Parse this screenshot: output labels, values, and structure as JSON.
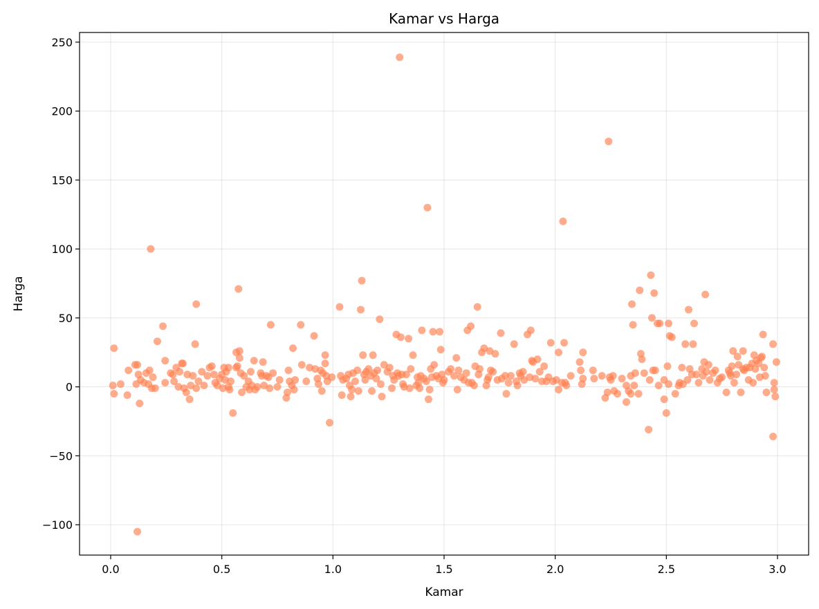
{
  "chart_data": {
    "type": "scatter",
    "title": "Kamar vs Harga",
    "xlabel": "Kamar",
    "ylabel": "Harga",
    "xlim": [
      -0.14,
      3.14
    ],
    "ylim": [
      -122,
      257
    ],
    "xticks": [
      0.0,
      0.5,
      1.0,
      1.5,
      2.0,
      2.5,
      3.0
    ],
    "xtick_labels": [
      "0.0",
      "0.5",
      "1.0",
      "1.5",
      "2.0",
      "2.5",
      "3.0"
    ],
    "yticks": [
      -100,
      -50,
      0,
      50,
      100,
      150,
      200,
      250
    ],
    "ytick_labels": [
      "−100",
      "−50",
      "0",
      "50",
      "100",
      "150",
      "200",
      "250"
    ],
    "grid": true,
    "marker_color": "#FF7F50",
    "marker_opacity": 0.65,
    "points": [
      [
        0.015,
        28
      ],
      [
        0.015,
        -5
      ],
      [
        0.01,
        1
      ],
      [
        0.045,
        2
      ],
      [
        0.075,
        -6
      ],
      [
        0.08,
        12
      ],
      [
        0.11,
        16
      ],
      [
        0.12,
        16
      ],
      [
        0.115,
        2
      ],
      [
        0.125,
        9
      ],
      [
        0.12,
        -105
      ],
      [
        0.13,
        -12
      ],
      [
        0.135,
        5
      ],
      [
        0.15,
        3
      ],
      [
        0.16,
        10
      ],
      [
        0.17,
        2
      ],
      [
        0.175,
        12
      ],
      [
        0.18,
        100
      ],
      [
        0.185,
        -1
      ],
      [
        0.19,
        7
      ],
      [
        0.2,
        -1
      ],
      [
        0.21,
        33
      ],
      [
        0.235,
        44
      ],
      [
        0.245,
        19
      ],
      [
        0.245,
        3
      ],
      [
        0.27,
        10
      ],
      [
        0.28,
        9
      ],
      [
        0.285,
        4
      ],
      [
        0.295,
        14
      ],
      [
        0.305,
        0
      ],
      [
        0.31,
        11
      ],
      [
        0.32,
        17
      ],
      [
        0.325,
        17
      ],
      [
        0.33,
        -1
      ],
      [
        0.34,
        -4
      ],
      [
        0.345,
        9
      ],
      [
        0.355,
        -9
      ],
      [
        0.36,
        1
      ],
      [
        0.37,
        8
      ],
      [
        0.38,
        31
      ],
      [
        0.385,
        60
      ],
      [
        0.385,
        -1
      ],
      [
        0.395,
        4
      ],
      [
        0.41,
        11
      ],
      [
        0.42,
        1
      ],
      [
        0.435,
        8
      ],
      [
        0.445,
        14
      ],
      [
        0.455,
        15
      ],
      [
        0.465,
        9
      ],
      [
        0.47,
        3
      ],
      [
        0.48,
        1
      ],
      [
        0.49,
        6
      ],
      [
        0.5,
        9
      ],
      [
        0.505,
        -1
      ],
      [
        0.51,
        14
      ],
      [
        0.515,
        5
      ],
      [
        0.52,
        11
      ],
      [
        0.53,
        14
      ],
      [
        0.53,
        0
      ],
      [
        0.535,
        -2
      ],
      [
        0.54,
        4
      ],
      [
        0.55,
        -19
      ],
      [
        0.565,
        14
      ],
      [
        0.565,
        25
      ],
      [
        0.57,
        15
      ],
      [
        0.575,
        71
      ],
      [
        0.58,
        26
      ],
      [
        0.58,
        21
      ],
      [
        0.585,
        10
      ],
      [
        0.59,
        -4
      ],
      [
        0.6,
        8
      ],
      [
        0.61,
        0
      ],
      [
        0.62,
        4
      ],
      [
        0.625,
        -2
      ],
      [
        0.63,
        11
      ],
      [
        0.635,
        1
      ],
      [
        0.645,
        19
      ],
      [
        0.65,
        -2
      ],
      [
        0.66,
        0
      ],
      [
        0.675,
        10
      ],
      [
        0.68,
        8
      ],
      [
        0.685,
        18
      ],
      [
        0.69,
        1
      ],
      [
        0.7,
        8
      ],
      [
        0.71,
        7
      ],
      [
        0.715,
        -1
      ],
      [
        0.72,
        45
      ],
      [
        0.73,
        10
      ],
      [
        0.75,
        0
      ],
      [
        0.76,
        5
      ],
      [
        0.79,
        -8
      ],
      [
        0.795,
        -4
      ],
      [
        0.8,
        12
      ],
      [
        0.805,
        4
      ],
      [
        0.815,
        1
      ],
      [
        0.82,
        28
      ],
      [
        0.825,
        -2
      ],
      [
        0.83,
        5
      ],
      [
        0.855,
        45
      ],
      [
        0.86,
        16
      ],
      [
        0.88,
        4
      ],
      [
        0.895,
        14
      ],
      [
        0.915,
        37
      ],
      [
        0.92,
        13
      ],
      [
        0.93,
        6
      ],
      [
        0.935,
        2
      ],
      [
        0.945,
        12
      ],
      [
        0.95,
        -3
      ],
      [
        0.955,
        10
      ],
      [
        0.965,
        23
      ],
      [
        0.965,
        17
      ],
      [
        0.97,
        8
      ],
      [
        0.975,
        4
      ],
      [
        0.985,
        -26
      ],
      [
        0.995,
        7
      ],
      [
        1.03,
        58
      ],
      [
        1.035,
        8
      ],
      [
        1.04,
        -6
      ],
      [
        1.045,
        5
      ],
      [
        1.06,
        6
      ],
      [
        1.07,
        9
      ],
      [
        1.075,
        1
      ],
      [
        1.08,
        -7
      ],
      [
        1.085,
        -2
      ],
      [
        1.09,
        10
      ],
      [
        1.1,
        4
      ],
      [
        1.11,
        12
      ],
      [
        1.115,
        -3
      ],
      [
        1.125,
        56
      ],
      [
        1.13,
        77
      ],
      [
        1.135,
        23
      ],
      [
        1.14,
        9
      ],
      [
        1.145,
        5
      ],
      [
        1.15,
        11
      ],
      [
        1.16,
        13
      ],
      [
        1.17,
        8
      ],
      [
        1.175,
        -3
      ],
      [
        1.18,
        23
      ],
      [
        1.185,
        10
      ],
      [
        1.195,
        6
      ],
      [
        1.2,
        12
      ],
      [
        1.21,
        49
      ],
      [
        1.215,
        2
      ],
      [
        1.22,
        -7
      ],
      [
        1.23,
        16
      ],
      [
        1.245,
        11
      ],
      [
        1.255,
        14
      ],
      [
        1.265,
        -1
      ],
      [
        1.27,
        8
      ],
      [
        1.275,
        5
      ],
      [
        1.285,
        38
      ],
      [
        1.29,
        10
      ],
      [
        1.295,
        8
      ],
      [
        1.3,
        239
      ],
      [
        1.305,
        36
      ],
      [
        1.31,
        9
      ],
      [
        1.315,
        2
      ],
      [
        1.32,
        0
      ],
      [
        1.33,
        9
      ],
      [
        1.34,
        35
      ],
      [
        1.345,
        -1
      ],
      [
        1.35,
        13
      ],
      [
        1.36,
        23
      ],
      [
        1.375,
        1
      ],
      [
        1.38,
        7
      ],
      [
        1.385,
        3
      ],
      [
        1.39,
        -1
      ],
      [
        1.395,
        8
      ],
      [
        1.4,
        41
      ],
      [
        1.41,
        6
      ],
      [
        1.42,
        4
      ],
      [
        1.425,
        130
      ],
      [
        1.43,
        -9
      ],
      [
        1.435,
        -2
      ],
      [
        1.44,
        13
      ],
      [
        1.445,
        7
      ],
      [
        1.45,
        40
      ],
      [
        1.455,
        16
      ],
      [
        1.465,
        8
      ],
      [
        1.475,
        6
      ],
      [
        1.48,
        40
      ],
      [
        1.485,
        27
      ],
      [
        1.49,
        9
      ],
      [
        1.495,
        3
      ],
      [
        1.5,
        5
      ],
      [
        1.52,
        11
      ],
      [
        1.53,
        13
      ],
      [
        1.545,
        8
      ],
      [
        1.555,
        21
      ],
      [
        1.56,
        -2
      ],
      [
        1.565,
        12
      ],
      [
        1.575,
        7
      ],
      [
        1.59,
        5
      ],
      [
        1.6,
        10
      ],
      [
        1.605,
        41
      ],
      [
        1.61,
        3
      ],
      [
        1.62,
        44
      ],
      [
        1.625,
        3
      ],
      [
        1.635,
        1
      ],
      [
        1.64,
        15
      ],
      [
        1.65,
        58
      ],
      [
        1.655,
        9
      ],
      [
        1.66,
        13
      ],
      [
        1.67,
        25
      ],
      [
        1.68,
        28
      ],
      [
        1.69,
        1
      ],
      [
        1.695,
        5
      ],
      [
        1.7,
        7
      ],
      [
        1.705,
        26
      ],
      [
        1.71,
        12
      ],
      [
        1.72,
        11
      ],
      [
        1.73,
        24
      ],
      [
        1.74,
        5
      ],
      [
        1.755,
        39
      ],
      [
        1.76,
        6
      ],
      [
        1.775,
        8
      ],
      [
        1.78,
        -5
      ],
      [
        1.79,
        3
      ],
      [
        1.8,
        8
      ],
      [
        1.815,
        31
      ],
      [
        1.825,
        4
      ],
      [
        1.83,
        1
      ],
      [
        1.84,
        10
      ],
      [
        1.845,
        8
      ],
      [
        1.855,
        11
      ],
      [
        1.86,
        5
      ],
      [
        1.875,
        38
      ],
      [
        1.885,
        7
      ],
      [
        1.89,
        41
      ],
      [
        1.895,
        19
      ],
      [
        1.9,
        18
      ],
      [
        1.91,
        6
      ],
      [
        1.92,
        20
      ],
      [
        1.93,
        11
      ],
      [
        1.94,
        4
      ],
      [
        1.95,
        15
      ],
      [
        1.96,
        4
      ],
      [
        1.97,
        7
      ],
      [
        1.98,
        32
      ],
      [
        1.99,
        4
      ],
      [
        2.005,
        5
      ],
      [
        2.015,
        25
      ],
      [
        2.015,
        -2
      ],
      [
        2.03,
        3
      ],
      [
        2.035,
        120
      ],
      [
        2.04,
        32
      ],
      [
        2.045,
        3
      ],
      [
        2.05,
        1
      ],
      [
        2.07,
        8
      ],
      [
        2.11,
        18
      ],
      [
        2.115,
        12
      ],
      [
        2.12,
        2
      ],
      [
        2.125,
        6
      ],
      [
        2.125,
        25
      ],
      [
        2.17,
        12
      ],
      [
        2.175,
        6
      ],
      [
        2.21,
        8
      ],
      [
        2.225,
        -8
      ],
      [
        2.235,
        -4
      ],
      [
        2.24,
        178
      ],
      [
        2.245,
        7
      ],
      [
        2.25,
        5
      ],
      [
        2.26,
        8
      ],
      [
        2.265,
        -3
      ],
      [
        2.28,
        -5
      ],
      [
        2.3,
        6
      ],
      [
        2.32,
        1
      ],
      [
        2.32,
        -11
      ],
      [
        2.33,
        -3
      ],
      [
        2.34,
        -5
      ],
      [
        2.34,
        8
      ],
      [
        2.345,
        60
      ],
      [
        2.35,
        45
      ],
      [
        2.355,
        1
      ],
      [
        2.36,
        10
      ],
      [
        2.375,
        -5
      ],
      [
        2.38,
        70
      ],
      [
        2.385,
        24
      ],
      [
        2.39,
        20
      ],
      [
        2.4,
        10
      ],
      [
        2.42,
        -31
      ],
      [
        2.425,
        5
      ],
      [
        2.43,
        81
      ],
      [
        2.435,
        50
      ],
      [
        2.44,
        12
      ],
      [
        2.445,
        68
      ],
      [
        2.45,
        12
      ],
      [
        2.46,
        46
      ],
      [
        2.465,
        1
      ],
      [
        2.47,
        46
      ],
      [
        2.49,
        5
      ],
      [
        2.49,
        -9
      ],
      [
        2.5,
        -19
      ],
      [
        2.505,
        15
      ],
      [
        2.51,
        2
      ],
      [
        2.51,
        46
      ],
      [
        2.515,
        37
      ],
      [
        2.525,
        36
      ],
      [
        2.54,
        -5
      ],
      [
        2.555,
        1
      ],
      [
        2.56,
        3
      ],
      [
        2.57,
        14
      ],
      [
        2.575,
        2
      ],
      [
        2.585,
        31
      ],
      [
        2.595,
        5
      ],
      [
        2.6,
        56
      ],
      [
        2.605,
        13
      ],
      [
        2.615,
        9
      ],
      [
        2.62,
        31
      ],
      [
        2.625,
        46
      ],
      [
        2.635,
        9
      ],
      [
        2.645,
        3
      ],
      [
        2.66,
        13
      ],
      [
        2.665,
        8
      ],
      [
        2.67,
        18
      ],
      [
        2.675,
        67
      ],
      [
        2.68,
        11
      ],
      [
        2.69,
        16
      ],
      [
        2.695,
        5
      ],
      [
        2.71,
        10
      ],
      [
        2.72,
        12
      ],
      [
        2.73,
        3
      ],
      [
        2.74,
        6
      ],
      [
        2.75,
        7
      ],
      [
        2.77,
        -4
      ],
      [
        2.78,
        12
      ],
      [
        2.785,
        10
      ],
      [
        2.79,
        8
      ],
      [
        2.795,
        15
      ],
      [
        2.8,
        26
      ],
      [
        2.805,
        3
      ],
      [
        2.815,
        9
      ],
      [
        2.82,
        22
      ],
      [
        2.825,
        16
      ],
      [
        2.835,
        -4
      ],
      [
        2.845,
        13
      ],
      [
        2.845,
        26
      ],
      [
        2.85,
        12
      ],
      [
        2.86,
        14
      ],
      [
        2.87,
        5
      ],
      [
        2.875,
        14
      ],
      [
        2.885,
        17
      ],
      [
        2.89,
        3
      ],
      [
        2.895,
        23
      ],
      [
        2.9,
        13
      ],
      [
        2.905,
        19
      ],
      [
        2.915,
        17
      ],
      [
        2.92,
        7
      ],
      [
        2.925,
        21
      ],
      [
        2.93,
        22
      ],
      [
        2.935,
        38
      ],
      [
        2.94,
        14
      ],
      [
        2.945,
        8
      ],
      [
        2.95,
        -4
      ],
      [
        2.98,
        31
      ],
      [
        2.98,
        -36
      ],
      [
        2.985,
        3
      ],
      [
        2.985,
        -2
      ],
      [
        2.99,
        -7
      ],
      [
        2.995,
        18
      ]
    ]
  }
}
